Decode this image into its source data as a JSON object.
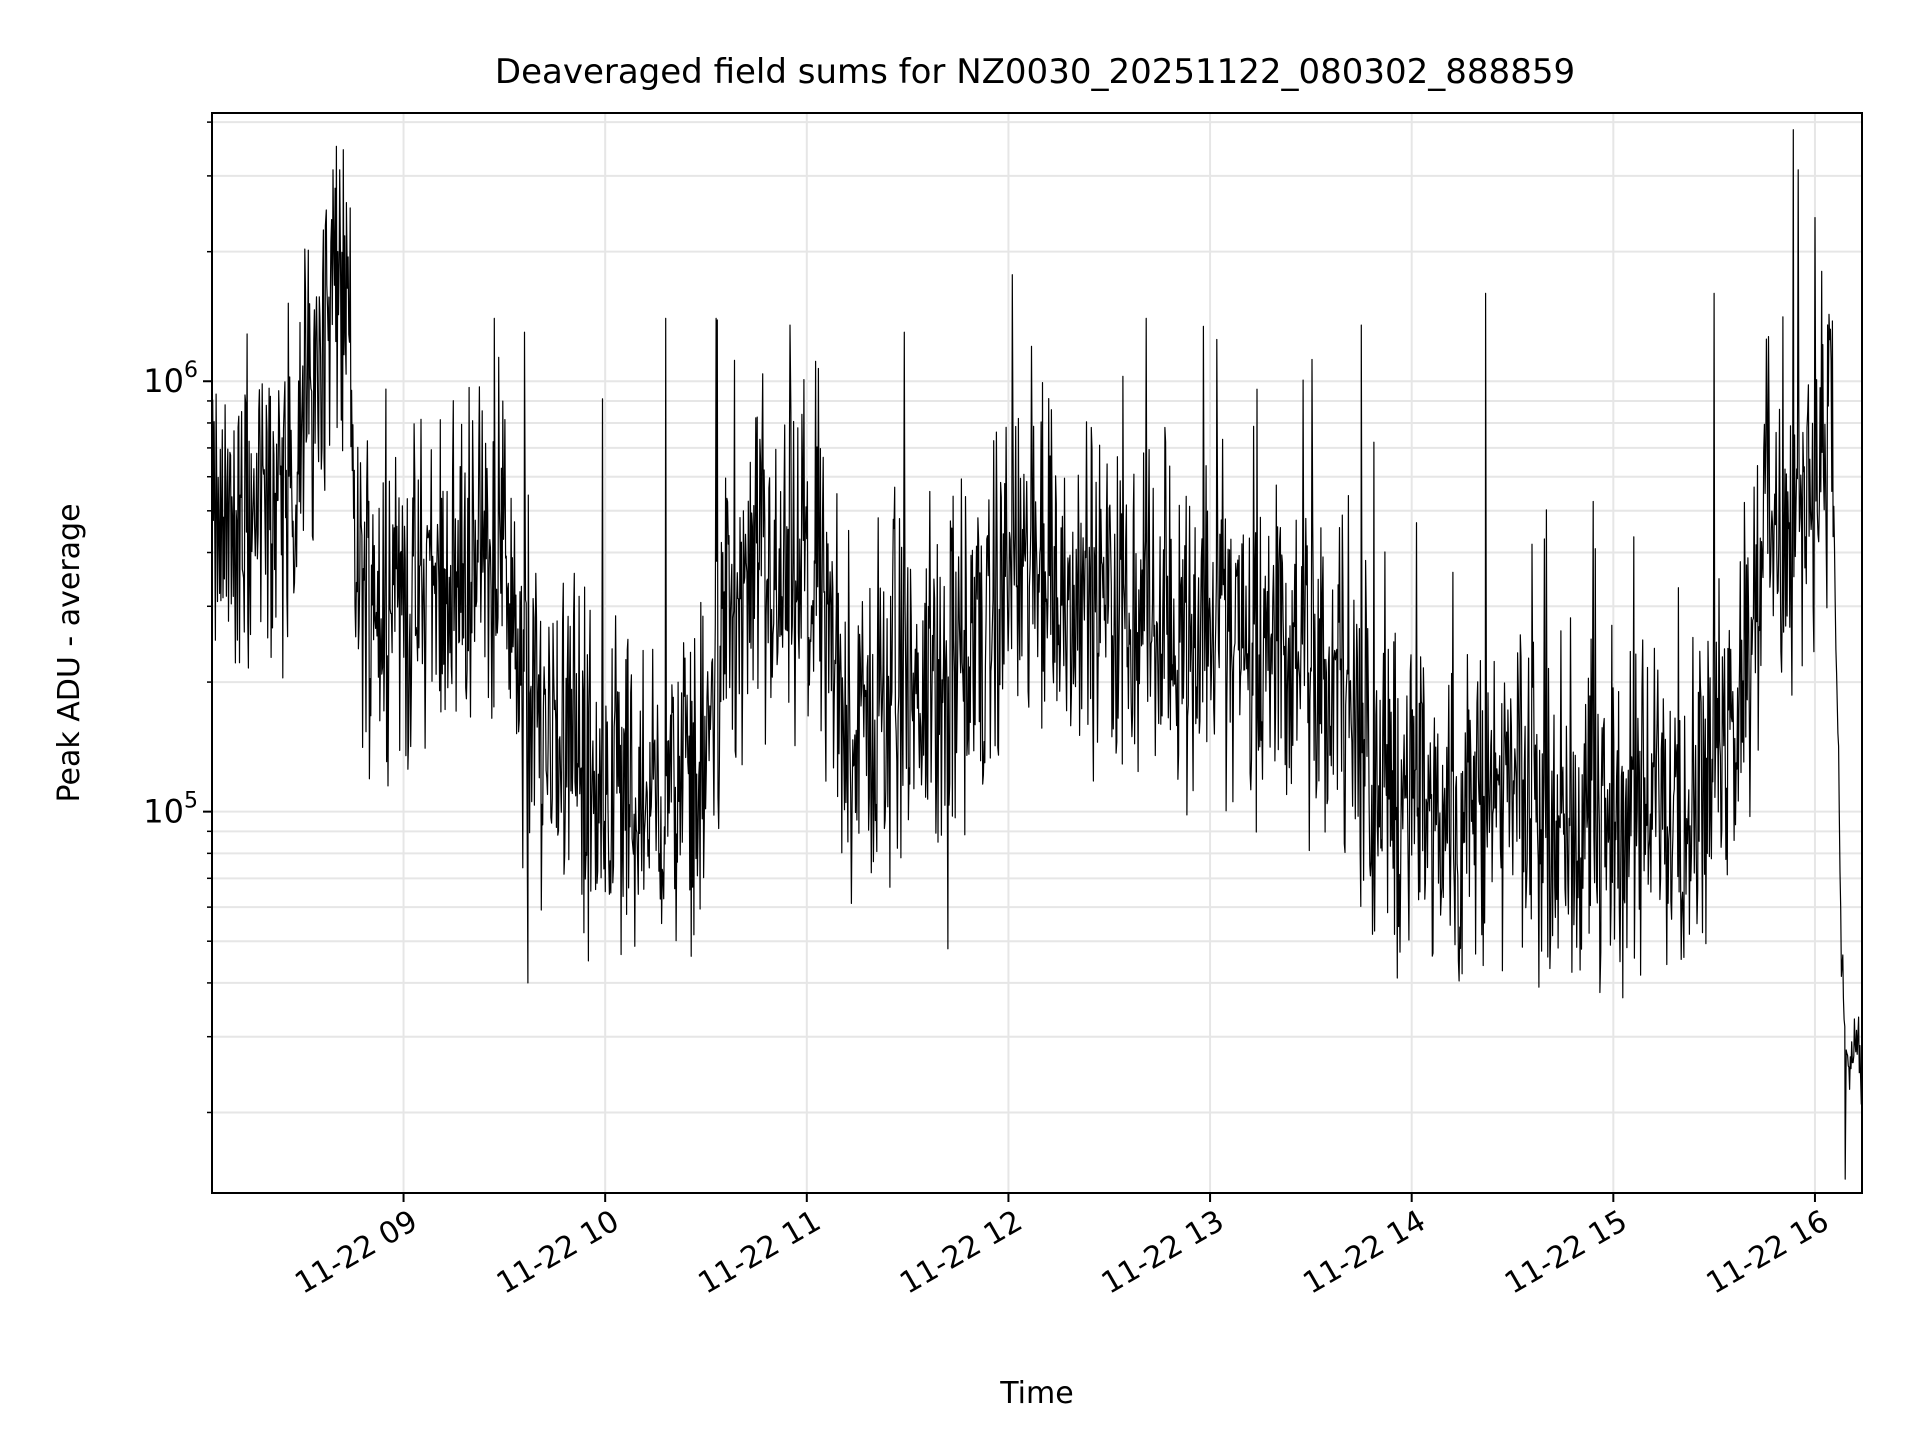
{
  "chart_data": {
    "type": "line",
    "title": "Deaveraged field sums for NZ0030_20251122_080302_888859",
    "xlabel": "Time",
    "ylabel": "Peak ADU - average",
    "y_scale": "log",
    "grid": true,
    "line_color": "#000000",
    "x_range": [
      "2025-11-22 08:03",
      "2025-11-22 16:14"
    ],
    "x_ticks": [
      {
        "t": "2025-11-22 09:00",
        "label": "11-22 09"
      },
      {
        "t": "2025-11-22 10:00",
        "label": "11-22 10"
      },
      {
        "t": "2025-11-22 11:00",
        "label": "11-22 11"
      },
      {
        "t": "2025-11-22 12:00",
        "label": "11-22 12"
      },
      {
        "t": "2025-11-22 13:00",
        "label": "11-22 13"
      },
      {
        "t": "2025-11-22 14:00",
        "label": "11-22 14"
      },
      {
        "t": "2025-11-22 15:00",
        "label": "11-22 15"
      },
      {
        "t": "2025-11-22 16:00",
        "label": "11-22 16"
      }
    ],
    "y_range": [
      13000,
      4200000
    ],
    "y_ticks": [
      {
        "value": 100000,
        "base": "10",
        "exp": "5"
      },
      {
        "value": 1000000,
        "base": "10",
        "exp": "6"
      }
    ],
    "series": [
      {
        "points": [
          [
            "2025-11-22 08:03",
            450000
          ],
          [
            "2025-11-22 08:08",
            430000
          ],
          [
            "2025-11-22 08:15",
            480000
          ],
          [
            "2025-11-22 08:25",
            520000
          ],
          [
            "2025-11-22 08:33",
            1000000
          ],
          [
            "2025-11-22 08:40",
            1600000
          ],
          [
            "2025-11-22 08:44",
            1200000
          ],
          [
            "2025-11-22 08:46",
            340000
          ],
          [
            "2025-11-22 08:55",
            320000
          ],
          [
            "2025-11-22 09:05",
            300000
          ],
          [
            "2025-11-22 09:20",
            380000
          ],
          [
            "2025-11-22 09:30",
            400000
          ],
          [
            "2025-11-22 09:35",
            180000
          ],
          [
            "2025-11-22 09:50",
            140000
          ],
          [
            "2025-11-22 10:05",
            110000
          ],
          [
            "2025-11-22 10:20",
            105000
          ],
          [
            "2025-11-22 10:30",
            130000
          ],
          [
            "2025-11-22 10:35",
            290000
          ],
          [
            "2025-11-22 10:50",
            330000
          ],
          [
            "2025-11-22 11:05",
            320000
          ],
          [
            "2025-11-22 11:10",
            150000
          ],
          [
            "2025-11-22 11:20",
            155000
          ],
          [
            "2025-11-22 11:40",
            190000
          ],
          [
            "2025-11-22 11:50",
            230000
          ],
          [
            "2025-11-22 12:00",
            360000
          ],
          [
            "2025-11-22 12:20",
            320000
          ],
          [
            "2025-11-22 12:40",
            280000
          ],
          [
            "2025-11-22 13:00",
            260000
          ],
          [
            "2025-11-22 13:20",
            240000
          ],
          [
            "2025-11-22 13:40",
            180000
          ],
          [
            "2025-11-22 13:50",
            110000
          ],
          [
            "2025-11-22 14:10",
            100000
          ],
          [
            "2025-11-22 14:30",
            100000
          ],
          [
            "2025-11-22 14:50",
            105000
          ],
          [
            "2025-11-22 15:10",
            100000
          ],
          [
            "2025-11-22 15:30",
            120000
          ],
          [
            "2025-11-22 15:40",
            230000
          ],
          [
            "2025-11-22 15:45",
            480000
          ],
          [
            "2025-11-22 15:55",
            420000
          ],
          [
            "2025-11-22 15:58",
            600000
          ],
          [
            "2025-11-22 16:02",
            700000
          ],
          [
            "2025-11-22 16:05",
            750000
          ],
          [
            "2025-11-22 16:06",
            350000
          ],
          [
            "2025-11-22 16:08",
            40000
          ],
          [
            "2025-11-22 16:10",
            25000
          ],
          [
            "2025-11-22 16:12",
            30000
          ],
          [
            "2025-11-22 16:14",
            25000
          ]
        ],
        "noise_decades": 0.45,
        "spikes": [
          [
            "2025-11-22 08:37",
            2500000
          ],
          [
            "2025-11-22 08:39",
            3100000
          ],
          [
            "2025-11-22 08:41",
            3100000
          ],
          [
            "2025-11-22 08:43",
            2600000
          ],
          [
            "2025-11-22 09:27",
            1400000
          ],
          [
            "2025-11-22 09:36",
            1300000
          ],
          [
            "2025-11-22 10:18",
            1400000
          ],
          [
            "2025-11-22 10:33",
            1400000
          ],
          [
            "2025-11-22 10:55",
            1350000
          ],
          [
            "2025-11-22 11:29",
            1300000
          ],
          [
            "2025-11-22 12:41",
            1400000
          ],
          [
            "2025-11-22 13:02",
            1250000
          ],
          [
            "2025-11-22 13:45",
            1350000
          ],
          [
            "2025-11-22 14:22",
            1600000
          ],
          [
            "2025-11-22 15:30",
            1600000
          ],
          [
            "2025-11-22 15:55",
            3100000
          ],
          [
            "2025-11-22 16:00",
            2400000
          ],
          [
            "2025-11-22 16:02",
            1800000
          ],
          [
            "2025-11-22 09:37",
            40000
          ],
          [
            "2025-11-22 09:55",
            45000
          ],
          [
            "2025-11-22 11:42",
            48000
          ],
          [
            "2025-11-22 14:15",
            42000
          ],
          [
            "2025-11-22 14:56",
            38000
          ],
          [
            "2025-11-22 16:09",
            14000
          ]
        ]
      }
    ]
  }
}
